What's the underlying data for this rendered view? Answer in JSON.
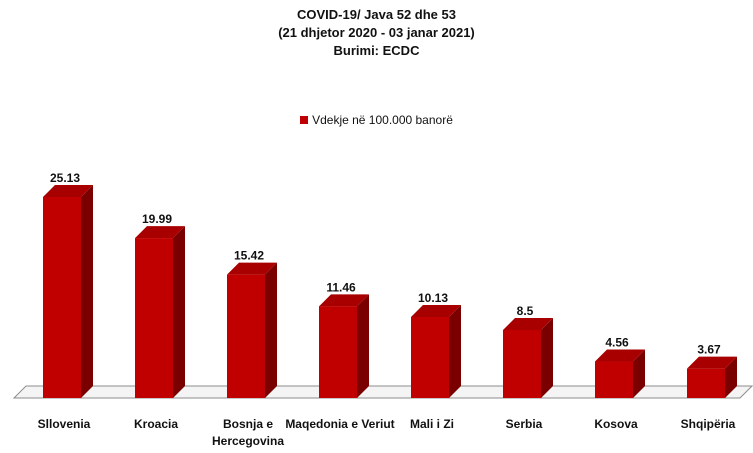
{
  "chart_data": {
    "type": "bar",
    "title": "COVID-19/ Java 52 dhe 53",
    "subtitle": "(21 dhjetor 2020 - 03 janar 2021)",
    "source": "Burimi: ECDC",
    "categories": [
      "Sllovenia",
      "Kroacia",
      "Bosnja e Hercegovina",
      "Maqedonia e Veriut",
      "Mali i Zi",
      "Serbia",
      "Kosova",
      "Shqipëria"
    ],
    "series": [
      {
        "name": "Vdekje në 100.000 banorë",
        "values": [
          25.13,
          19.99,
          15.42,
          11.46,
          10.13,
          8.5,
          4.56,
          3.67
        ],
        "labels": [
          "25.13",
          "19.99",
          "15.42",
          "11.46",
          "10.13",
          "8.5",
          "4.56",
          "3.67"
        ]
      }
    ],
    "ylim": [
      0,
      28
    ],
    "legend_position": "top",
    "grid": false,
    "colors": {
      "bar_front": "#c00000",
      "bar_side": "#7a0000",
      "bar_top": "#a80000"
    }
  }
}
